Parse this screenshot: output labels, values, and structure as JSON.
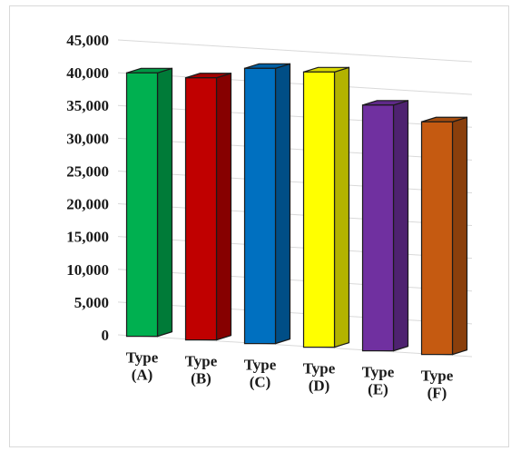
{
  "chart_data": {
    "type": "bar",
    "categories": [
      "Type (A)",
      "Type (B)",
      "Type (C)",
      "Type (D)",
      "Type (E)",
      "Type (F)"
    ],
    "category_lines": [
      [
        "Type",
        "(A)"
      ],
      [
        "Type",
        "(B)"
      ],
      [
        "Type",
        "(C)"
      ],
      [
        "Type",
        "(D)"
      ],
      [
        "Type",
        "(E)"
      ],
      [
        "Type",
        "(F)"
      ]
    ],
    "values": [
      40200,
      40000,
      42000,
      42000,
      37500,
      35500
    ],
    "colors": [
      "#00b050",
      "#c00000",
      "#0070c0",
      "#ffff00",
      "#7030a0",
      "#c55a11"
    ],
    "ylim": [
      0,
      45000
    ],
    "yticks": [
      0,
      5000,
      10000,
      15000,
      20000,
      25000,
      30000,
      35000,
      40000,
      45000
    ],
    "ytick_labels": [
      "0",
      "5,000",
      "10,000",
      "15,000",
      "20,000",
      "25,000",
      "30,000",
      "35,000",
      "40,000",
      "45,000"
    ],
    "grid": true,
    "style": "3d-perspective-columns",
    "title": "",
    "xlabel": "",
    "ylabel": ""
  }
}
